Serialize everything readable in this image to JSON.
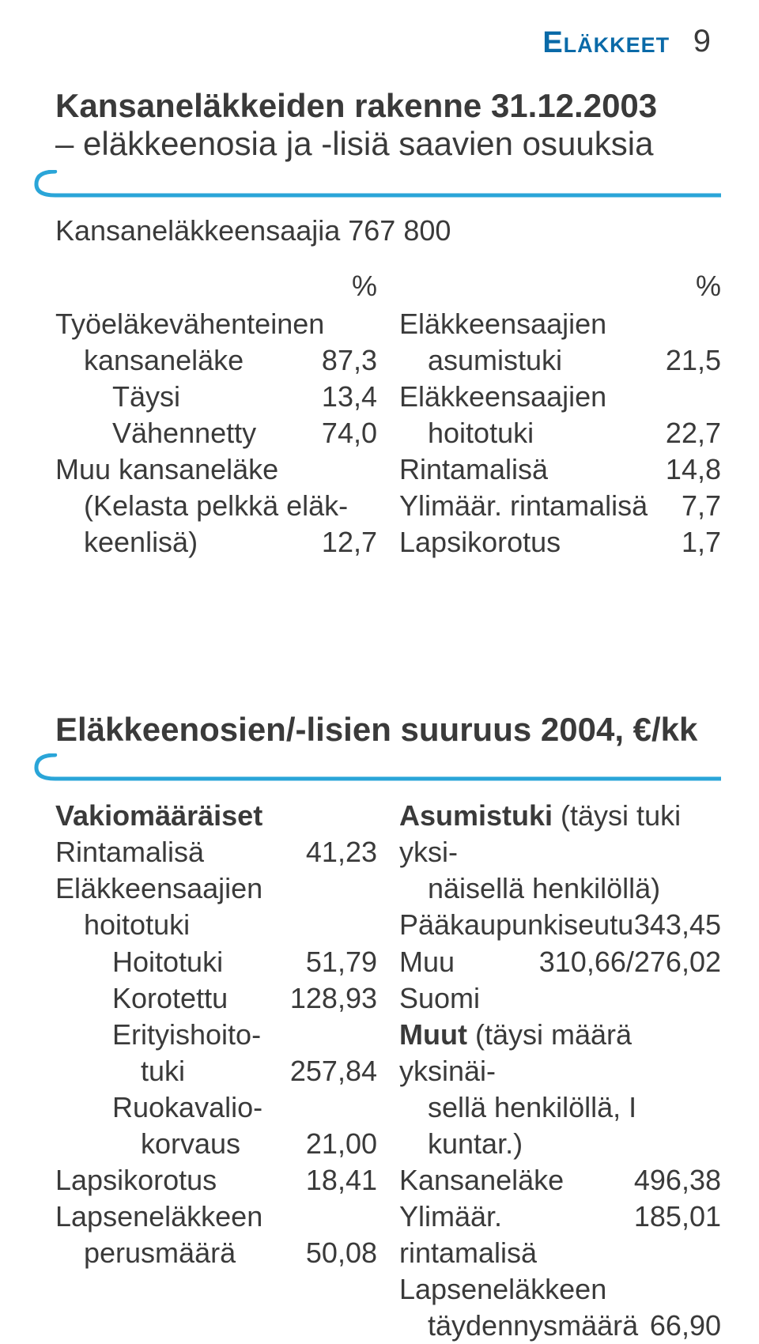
{
  "header": {
    "section_label": "Eläkkeet",
    "page_number": "9",
    "section_color": "#0a6aa8"
  },
  "table1": {
    "title_bold": "Kansaneläkkeiden rakenne 31.12.2003",
    "title_rest": "– eläkkeenosia ja -lisiä saavien osuuksia",
    "subhead": "Kansaneläkkeensaajia 767 800",
    "left": {
      "pct_label": "%",
      "rows": [
        {
          "label": "Työeläkevähenteinen",
          "value": ""
        },
        {
          "label": "kansaneläke",
          "value": "87,3",
          "indent": 1
        },
        {
          "label": "Täysi",
          "value": "13,4",
          "indent": 2
        },
        {
          "label": "Vähennetty",
          "value": "74,0",
          "indent": 2
        },
        {
          "label": "Muu kansaneläke",
          "value": ""
        },
        {
          "label": "(Kelasta pelkkä eläk-",
          "value": "",
          "indent": 1
        },
        {
          "label": "keenlisä)",
          "value": "12,7",
          "indent": 1
        }
      ]
    },
    "right": {
      "pct_label": "%",
      "rows": [
        {
          "label": "Eläkkeensaajien",
          "value": ""
        },
        {
          "label": "asumistuki",
          "value": "21,5",
          "indent": 1
        },
        {
          "label": "Eläkkeensaajien",
          "value": ""
        },
        {
          "label": "hoitotuki",
          "value": "22,7",
          "indent": 1
        },
        {
          "label": "Rintamalisä",
          "value": "14,8"
        },
        {
          "label": "Ylimäär. rintamalisä",
          "value": "7,7"
        },
        {
          "label": "Lapsikorotus",
          "value": "1,7"
        }
      ]
    }
  },
  "table2": {
    "title": "Eläkkeenosien/-lisien suuruus 2004, €/kk",
    "left": {
      "rows": [
        {
          "label": "Vakiomääräiset",
          "value": "",
          "bold": true
        },
        {
          "label": "Rintamalisä",
          "value": "41,23"
        },
        {
          "label": "Eläkkeensaajien",
          "value": ""
        },
        {
          "label": "hoitotuki",
          "value": "",
          "indent": 1
        },
        {
          "label": "Hoitotuki",
          "value": "51,79",
          "indent": 2
        },
        {
          "label": "Korotettu",
          "value": "128,93",
          "indent": 2
        },
        {
          "label": "Erityishoito-",
          "value": "",
          "indent": 2
        },
        {
          "label": "tuki",
          "value": "257,84",
          "indent": 3
        },
        {
          "label": "Ruokavalio-",
          "value": "",
          "indent": 2
        },
        {
          "label": "korvaus",
          "value": "21,00",
          "indent": 3
        },
        {
          "label": "Lapsikorotus",
          "value": "18,41"
        },
        {
          "label": "Lapseneläkkeen",
          "value": ""
        },
        {
          "label": "perusmäärä",
          "value": "50,08",
          "indent": 1
        }
      ]
    },
    "right": {
      "rows": [
        {
          "label": "Asumistuki",
          "rest": " (täysi tuki yksi-",
          "bold_first": true
        },
        {
          "label": "näisellä henkilöllä)",
          "indent": 1
        },
        {
          "label": "Pääkaupunkiseutu",
          "value": "343,45"
        },
        {
          "label": "Muu Suomi",
          "value": "310,66/276,02"
        },
        {
          "label": " ",
          "value": ""
        },
        {
          "label": "Muut",
          "rest": " (täysi määrä yksinäi-",
          "bold_first": true
        },
        {
          "label": "sellä henkilöllä, I kuntar.)",
          "indent": 1
        },
        {
          "label": "Kansaneläke",
          "value": "496,38"
        },
        {
          "label": "Ylimäär. rintamalisä",
          "value": "185,01"
        },
        {
          "label": "Lapseneläkkeen",
          "value": ""
        },
        {
          "label": "täydennysmäärä",
          "value": "66,90",
          "indent": 1
        }
      ]
    }
  },
  "style": {
    "text_color": "#3a3a3a",
    "accent_color": "#2aa5d8",
    "fontsize_body": 36,
    "fontsize_title": 42
  }
}
